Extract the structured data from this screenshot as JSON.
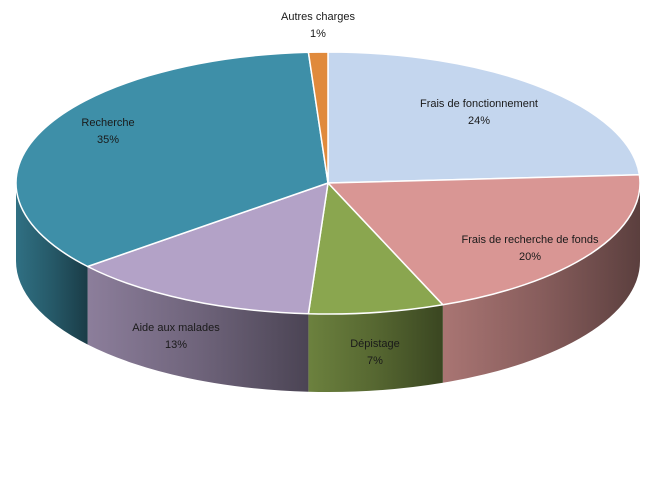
{
  "chart_data": {
    "type": "pie",
    "style": "3d",
    "title": "",
    "show_legend": false,
    "slices": [
      {
        "label": "Frais de fonctionnement",
        "value": 24,
        "pct_label": "24%",
        "color": "#c4d6ee"
      },
      {
        "label": "Frais de recherche de fonds",
        "value": 20,
        "pct_label": "20%",
        "color": "#d99694"
      },
      {
        "label": "Dépistage",
        "value": 7,
        "pct_label": "7%",
        "color": "#8aa64f"
      },
      {
        "label": "Aide aux malades",
        "value": 13,
        "pct_label": "13%",
        "color": "#b3a2c7"
      },
      {
        "label": "Recherche",
        "value": 35,
        "pct_label": "35%",
        "color": "#3e8fa8"
      },
      {
        "label": "Autres charges",
        "value": 1,
        "pct_label": "1%",
        "color": "#e08a3c"
      }
    ]
  }
}
